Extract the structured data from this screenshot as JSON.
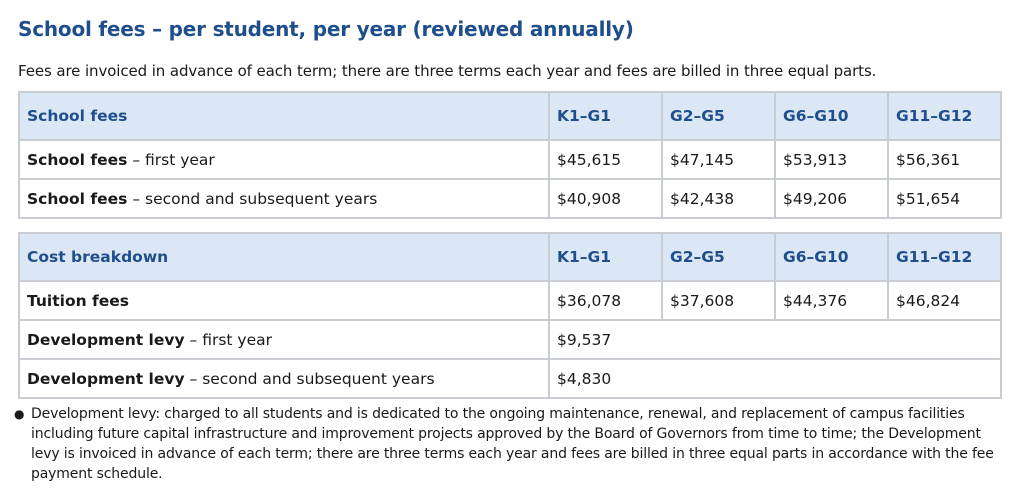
{
  "title": "School fees – per student, per year (reviewed annually)",
  "intro": "Fees are invoiced in advance of each term; there are three terms each year and fees are billed in three equal parts.",
  "fees_table": {
    "header": [
      "School fees",
      "K1–G1",
      "G2–G5",
      "G6–G10",
      "G11–G12"
    ],
    "rows": [
      {
        "label_bold": "School fees",
        "label_rest": " – first year",
        "values": [
          "$45,615",
          "$47,145",
          "$53,913",
          "$56,361"
        ]
      },
      {
        "label_bold": "School fees",
        "label_rest": " – second and subsequent years",
        "values": [
          "$40,908",
          "$42,438",
          "$49,206",
          "$51,654"
        ]
      }
    ]
  },
  "breakdown_table": {
    "header": [
      "Cost breakdown",
      "K1–G1",
      "G2–G5",
      "G6–G10",
      "G11–G12"
    ],
    "tuition": {
      "label_bold": "Tuition fees",
      "values": [
        "$36,078",
        "$37,608",
        "$44,376",
        "$46,824"
      ]
    },
    "levy_first": {
      "label_bold": "Development levy",
      "label_rest": " – first year",
      "value": "$9,537"
    },
    "levy_subsequent": {
      "label_bold": "Development levy",
      "label_rest": " – second and subsequent years",
      "value": "$4,830"
    }
  },
  "note": {
    "bullet": "●",
    "text": "Development levy: charged to all students and is dedicated to the ongoing maintenance, renewal, and replacement of campus facilities including future capital infrastructure and improvement projects approved by the Board of Governors from time to time; the Development levy is invoiced in advance of each term; there are three terms each year and fees are billed in three equal parts in accordance with the fee payment schedule."
  }
}
